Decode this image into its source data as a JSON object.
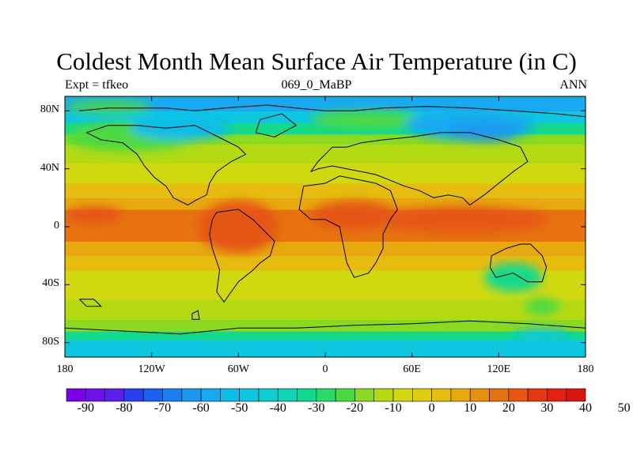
{
  "title": "Coldest Month Mean Surface Air Temperature (in C)",
  "subtitle_left": "Expt = tfkeo",
  "subtitle_center": "069_0_MaBP",
  "subtitle_right": "ANN",
  "lat_ticks": [
    "80N",
    "40N",
    "0",
    "40S",
    "80S"
  ],
  "lon_ticks": [
    "180",
    "120W",
    "60W",
    "0",
    "60E",
    "120E",
    "180"
  ],
  "colorbar": {
    "labels": [
      "-90",
      "-80",
      "-70",
      "-60",
      "-50",
      "-40",
      "-30",
      "-20",
      "-10",
      "0",
      "10",
      "20",
      "30",
      "40",
      "50"
    ],
    "colors": [
      "#7a00e6",
      "#6f10e8",
      "#5a20ea",
      "#2a3ff0",
      "#1c60f0",
      "#1a7ef0",
      "#1b96f0",
      "#17aaf0",
      "#10bce8",
      "#0ec6e0",
      "#0dcdd0",
      "#10d4b4",
      "#14d88c",
      "#2bd96a",
      "#4fd940",
      "#8bd920",
      "#b4da14",
      "#d2d810",
      "#e0cd10",
      "#e6bc10",
      "#e7a810",
      "#e7900e",
      "#e67310",
      "#e55712",
      "#e43814",
      "#e41f14",
      "#d81410"
    ]
  },
  "map": {
    "lon_range": [
      -180,
      180
    ],
    "lat_range": [
      -90,
      90
    ],
    "bands": [
      {
        "lat_top": 90,
        "lat_bottom": 78,
        "color": "#17aaf0"
      },
      {
        "lat_top": 78,
        "lat_bottom": 70,
        "color": "#0ec6e0"
      },
      {
        "lat_top": 70,
        "lat_bottom": 62,
        "color": "#14d88c"
      },
      {
        "lat_top": 62,
        "lat_bottom": 55,
        "color": "#8bd920"
      },
      {
        "lat_top": 55,
        "lat_bottom": 42,
        "color": "#b4da14"
      },
      {
        "lat_top": 42,
        "lat_bottom": 28,
        "color": "#d2d810"
      },
      {
        "lat_top": 28,
        "lat_bottom": 18,
        "color": "#e6bc10"
      },
      {
        "lat_top": 18,
        "lat_bottom": 10,
        "color": "#e7a810"
      },
      {
        "lat_top": 10,
        "lat_bottom": -12,
        "color": "#e67310"
      },
      {
        "lat_top": -12,
        "lat_bottom": -22,
        "color": "#e7a810"
      },
      {
        "lat_top": -22,
        "lat_bottom": -32,
        "color": "#e6bc10"
      },
      {
        "lat_top": -32,
        "lat_bottom": -52,
        "color": "#d2d810"
      },
      {
        "lat_top": -52,
        "lat_bottom": -66,
        "color": "#b4da14"
      },
      {
        "lat_top": -66,
        "lat_bottom": -74,
        "color": "#8bd920"
      },
      {
        "lat_top": -74,
        "lat_bottom": -80,
        "color": "#14d88c"
      },
      {
        "lat_top": -80,
        "lat_bottom": -90,
        "color": "#0ec6e0"
      }
    ],
    "blobs": [
      {
        "lon": -135,
        "lat": 62,
        "rlon": 45,
        "rlat": 10,
        "color": "#4fd940"
      },
      {
        "lon": -100,
        "lat": 68,
        "rlon": 35,
        "rlat": 8,
        "color": "#10bce8"
      },
      {
        "lon": 30,
        "lat": 74,
        "rlon": 40,
        "rlat": 6,
        "color": "#4fd940"
      },
      {
        "lon": 100,
        "lat": 70,
        "rlon": 45,
        "rlat": 10,
        "color": "#17aaf0"
      },
      {
        "lon": 110,
        "lat": 65,
        "rlon": 25,
        "rlat": 6,
        "color": "#1b96f0"
      },
      {
        "lon": -150,
        "lat": 83,
        "rlon": 30,
        "rlat": 4,
        "color": "#4fd940"
      },
      {
        "lon": -60,
        "lat": 0,
        "rlon": 28,
        "rlat": 18,
        "color": "#e55712"
      },
      {
        "lon": 20,
        "lat": 8,
        "rlon": 30,
        "rlat": 10,
        "color": "#e55712"
      },
      {
        "lon": 95,
        "lat": 5,
        "rlon": 60,
        "rlat": 9,
        "color": "#e55712"
      },
      {
        "lon": -160,
        "lat": 8,
        "rlon": 20,
        "rlat": 6,
        "color": "#e55712"
      },
      {
        "lon": 130,
        "lat": -35,
        "rlon": 20,
        "rlat": 10,
        "color": "#14d88c"
      },
      {
        "lon": 150,
        "lat": -55,
        "rlon": 12,
        "rlat": 6,
        "color": "#4fd940"
      },
      {
        "lon": 150,
        "lat": -75,
        "rlon": 20,
        "rlat": 4,
        "color": "#0ec6e0"
      }
    ],
    "coastlines": [
      [
        [
          -170,
          80
        ],
        [
          -150,
          82
        ],
        [
          -110,
          82
        ],
        [
          -90,
          80
        ],
        [
          -70,
          82
        ],
        [
          -40,
          84
        ],
        [
          -20,
          82
        ],
        [
          0,
          80
        ],
        [
          20,
          80
        ],
        [
          40,
          82
        ],
        [
          70,
          83
        ],
        [
          100,
          82
        ],
        [
          130,
          80
        ],
        [
          160,
          78
        ],
        [
          180,
          76
        ]
      ],
      [
        [
          -165,
          65
        ],
        [
          -150,
          70
        ],
        [
          -130,
          70
        ],
        [
          -110,
          68
        ],
        [
          -90,
          70
        ],
        [
          -80,
          65
        ],
        [
          -70,
          60
        ],
        [
          -60,
          55
        ],
        [
          -55,
          50
        ],
        [
          -65,
          45
        ],
        [
          -75,
          38
        ],
        [
          -80,
          30
        ],
        [
          -82,
          22
        ],
        [
          -90,
          18
        ],
        [
          -95,
          15
        ],
        [
          -105,
          20
        ],
        [
          -110,
          28
        ],
        [
          -118,
          34
        ],
        [
          -125,
          42
        ],
        [
          -130,
          50
        ],
        [
          -140,
          58
        ],
        [
          -155,
          60
        ],
        [
          -165,
          65
        ]
      ],
      [
        [
          -75,
          10
        ],
        [
          -60,
          12
        ],
        [
          -50,
          5
        ],
        [
          -40,
          -5
        ],
        [
          -35,
          -10
        ],
        [
          -38,
          -20
        ],
        [
          -45,
          -25
        ],
        [
          -50,
          -30
        ],
        [
          -60,
          -38
        ],
        [
          -65,
          -45
        ],
        [
          -70,
          -52
        ],
        [
          -75,
          -45
        ],
        [
          -73,
          -30
        ],
        [
          -78,
          -15
        ],
        [
          -80,
          -5
        ],
        [
          -78,
          5
        ],
        [
          -75,
          10
        ]
      ],
      [
        [
          -15,
          28
        ],
        [
          0,
          30
        ],
        [
          10,
          35
        ],
        [
          25,
          32
        ],
        [
          35,
          30
        ],
        [
          45,
          25
        ],
        [
          50,
          12
        ],
        [
          45,
          5
        ],
        [
          40,
          -5
        ],
        [
          40,
          -15
        ],
        [
          35,
          -25
        ],
        [
          30,
          -32
        ],
        [
          20,
          -35
        ],
        [
          15,
          -25
        ],
        [
          12,
          -10
        ],
        [
          10,
          0
        ],
        [
          0,
          5
        ],
        [
          -10,
          5
        ],
        [
          -18,
          12
        ],
        [
          -15,
          28
        ]
      ],
      [
        [
          -10,
          38
        ],
        [
          -5,
          45
        ],
        [
          0,
          50
        ],
        [
          5,
          55
        ],
        [
          15,
          55
        ],
        [
          25,
          58
        ],
        [
          40,
          60
        ],
        [
          60,
          62
        ],
        [
          80,
          65
        ],
        [
          100,
          65
        ],
        [
          120,
          60
        ],
        [
          135,
          55
        ],
        [
          140,
          45
        ],
        [
          130,
          38
        ],
        [
          120,
          30
        ],
        [
          110,
          22
        ],
        [
          100,
          15
        ],
        [
          95,
          20
        ],
        [
          85,
          22
        ],
        [
          75,
          20
        ],
        [
          65,
          25
        ],
        [
          55,
          28
        ],
        [
          45,
          32
        ],
        [
          35,
          36
        ],
        [
          25,
          38
        ],
        [
          15,
          40
        ],
        [
          5,
          42
        ],
        [
          -5,
          40
        ],
        [
          -10,
          38
        ]
      ],
      [
        [
          115,
          -20
        ],
        [
          125,
          -15
        ],
        [
          135,
          -12
        ],
        [
          142,
          -12
        ],
        [
          150,
          -20
        ],
        [
          153,
          -28
        ],
        [
          150,
          -38
        ],
        [
          140,
          -38
        ],
        [
          130,
          -32
        ],
        [
          118,
          -35
        ],
        [
          114,
          -28
        ],
        [
          115,
          -20
        ]
      ],
      [
        [
          -180,
          -70
        ],
        [
          -140,
          -72
        ],
        [
          -100,
          -74
        ],
        [
          -60,
          -70
        ],
        [
          -20,
          -70
        ],
        [
          20,
          -68
        ],
        [
          60,
          -67
        ],
        [
          100,
          -65
        ],
        [
          140,
          -67
        ],
        [
          180,
          -70
        ]
      ],
      [
        [
          -170,
          -50
        ],
        [
          -160,
          -50
        ],
        [
          -155,
          -55
        ],
        [
          -165,
          -55
        ],
        [
          -170,
          -50
        ]
      ],
      [
        [
          -92,
          -60
        ],
        [
          -88,
          -58
        ],
        [
          -87,
          -64
        ],
        [
          -92,
          -64
        ],
        [
          -92,
          -60
        ]
      ],
      [
        [
          -45,
          74
        ],
        [
          -30,
          78
        ],
        [
          -20,
          70
        ],
        [
          -35,
          62
        ],
        [
          -48,
          65
        ],
        [
          -45,
          74
        ]
      ]
    ]
  }
}
